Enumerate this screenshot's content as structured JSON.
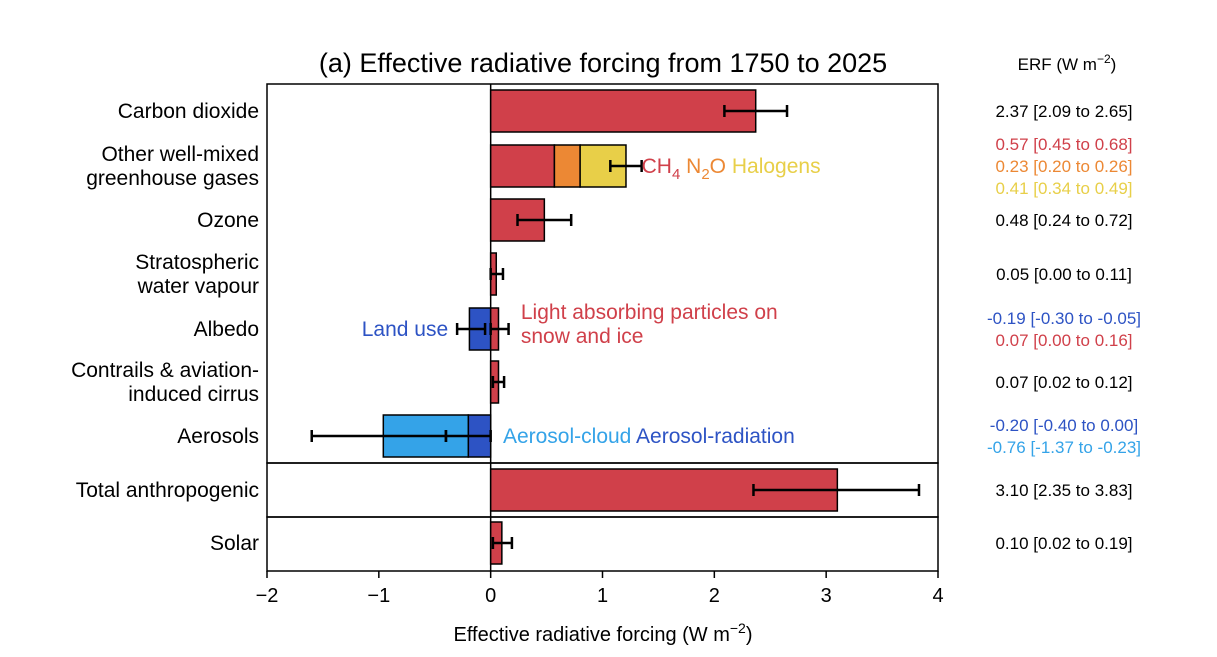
{
  "chart_data": {
    "type": "bar",
    "orientation": "horizontal",
    "title": "(a) Effective radiative forcing from 1750 to 2025",
    "xlabel": "Effective radiative forcing (W m",
    "xlabel_sup": "−2",
    "xlabel_close": ")",
    "xlim": [
      -2,
      4
    ],
    "xticks": [
      -2,
      -1,
      0,
      1,
      2,
      3,
      4
    ],
    "xtick_labels": [
      "−2",
      "−1",
      "0",
      "1",
      "2",
      "3",
      "4"
    ],
    "erf_header": "ERF (W m",
    "erf_header_sup": "−2",
    "erf_header_close": ")",
    "colors": {
      "co2_red": "#d0404a",
      "n2o_orange": "#ec8834",
      "halogens_yellow": "#e8cf48",
      "landuse_blue": "#2d53c4",
      "aerosol_cloud_blue": "#34a3e8",
      "aerosol_radiation_blue": "#2d53c4",
      "text_black": "#000000"
    },
    "categories": [
      {
        "label_lines": [
          "Carbon dioxide"
        ],
        "group": 0,
        "segments": [
          {
            "component": "CO2",
            "start": 0,
            "end": 2.37,
            "color": "#d0404a"
          }
        ],
        "errorbars": [
          {
            "center": 2.37,
            "low": 2.09,
            "high": 2.65
          }
        ],
        "erf_lines": [
          {
            "text": "2.37 [2.09 to 2.65]",
            "color": "#000000"
          }
        ]
      },
      {
        "label_lines": [
          "Other well-mixed",
          "greenhouse gases"
        ],
        "group": 0,
        "segments": [
          {
            "component": "CH4",
            "start": 0,
            "end": 0.57,
            "color": "#d0404a"
          },
          {
            "component": "N2O",
            "start": 0.57,
            "end": 0.8,
            "color": "#ec8834"
          },
          {
            "component": "Halogens",
            "start": 0.8,
            "end": 1.21,
            "color": "#e8cf48"
          }
        ],
        "errorbars": [
          {
            "center": 1.21,
            "low": 1.07,
            "high": 1.35
          }
        ],
        "erf_lines": [
          {
            "text": "0.57 [0.45 to 0.68]",
            "color": "#d0404a"
          },
          {
            "text": "0.23 [0.20 to 0.26]",
            "color": "#ec8834"
          },
          {
            "text": "0.41 [0.34 to 0.49]",
            "color": "#e8cf48"
          }
        ]
      },
      {
        "label_lines": [
          "Ozone"
        ],
        "group": 0,
        "segments": [
          {
            "component": "Ozone",
            "start": 0,
            "end": 0.48,
            "color": "#d0404a"
          }
        ],
        "errorbars": [
          {
            "center": 0.48,
            "low": 0.24,
            "high": 0.72
          }
        ],
        "erf_lines": [
          {
            "text": "0.48 [0.24 to 0.72]",
            "color": "#000000"
          }
        ]
      },
      {
        "label_lines": [
          "Stratospheric",
          "water vapour"
        ],
        "group": 0,
        "segments": [
          {
            "component": "Stratospheric water vapour",
            "start": 0,
            "end": 0.05,
            "color": "#d0404a"
          }
        ],
        "errorbars": [
          {
            "center": 0.05,
            "low": 0.0,
            "high": 0.11
          }
        ],
        "erf_lines": [
          {
            "text": "0.05 [0.00 to 0.11]",
            "color": "#000000"
          }
        ]
      },
      {
        "label_lines": [
          "Albedo"
        ],
        "group": 0,
        "segments": [
          {
            "component": "Land use",
            "start": -0.19,
            "end": 0,
            "color": "#2d53c4"
          },
          {
            "component": "Light absorbing particles on snow and ice",
            "start": 0,
            "end": 0.07,
            "color": "#d0404a"
          }
        ],
        "errorbars": [
          {
            "center": -0.19,
            "low": -0.3,
            "high": -0.05
          },
          {
            "center": 0.07,
            "low": 0.0,
            "high": 0.16
          }
        ],
        "erf_lines": [
          {
            "text": "-0.19 [-0.30 to -0.05]",
            "color": "#2d53c4"
          },
          {
            "text": "0.07 [0.00 to 0.16]",
            "color": "#d0404a"
          }
        ]
      },
      {
        "label_lines": [
          "Contrails & aviation-",
          "induced cirrus"
        ],
        "group": 0,
        "segments": [
          {
            "component": "Contrails",
            "start": 0,
            "end": 0.07,
            "color": "#d0404a"
          }
        ],
        "errorbars": [
          {
            "center": 0.07,
            "low": 0.02,
            "high": 0.12
          }
        ],
        "erf_lines": [
          {
            "text": "0.07 [0.02 to 0.12]",
            "color": "#000000"
          }
        ]
      },
      {
        "label_lines": [
          "Aerosols"
        ],
        "group": 0,
        "segments": [
          {
            "component": "Aerosol-radiation",
            "start": -0.2,
            "end": 0,
            "color": "#2d53c4"
          },
          {
            "component": "Aerosol-cloud",
            "start": -0.96,
            "end": -0.2,
            "color": "#34a3e8"
          }
        ],
        "errorbars": [
          {
            "center": -0.2,
            "low": -0.4,
            "high": 0.0
          },
          {
            "center": -0.96,
            "low": -1.6,
            "high": -0.4
          }
        ],
        "erf_lines": [
          {
            "text": "-0.20 [-0.40 to 0.00]",
            "color": "#2d53c4"
          },
          {
            "text": "-0.76 [-1.37 to -0.23]",
            "color": "#34a3e8"
          }
        ]
      },
      {
        "label_lines": [
          "Total anthropogenic"
        ],
        "group": 1,
        "segments": [
          {
            "component": "Total anthropogenic",
            "start": 0,
            "end": 3.1,
            "color": "#d0404a"
          }
        ],
        "errorbars": [
          {
            "center": 3.1,
            "low": 2.35,
            "high": 3.83
          }
        ],
        "erf_lines": [
          {
            "text": "3.10 [2.35 to 3.83]",
            "color": "#000000"
          }
        ]
      },
      {
        "label_lines": [
          "Solar"
        ],
        "group": 2,
        "segments": [
          {
            "component": "Solar",
            "start": 0,
            "end": 0.1,
            "color": "#d0404a"
          }
        ],
        "errorbars": [
          {
            "center": 0.1,
            "low": 0.02,
            "high": 0.19
          }
        ],
        "erf_lines": [
          {
            "text": "0.10 [0.02 to 0.19]",
            "color": "#000000"
          }
        ]
      }
    ],
    "annotations": [
      {
        "category_index": 1,
        "anchor_x": 1.35,
        "anchor": "start",
        "parts": [
          {
            "text": "CH",
            "color": "#d0404a"
          },
          {
            "text": "4",
            "color": "#d0404a",
            "sub": true
          },
          {
            "text": " N",
            "color": "#ec8834"
          },
          {
            "text": "2",
            "color": "#ec8834",
            "sub": true
          },
          {
            "text": "O",
            "color": "#ec8834"
          },
          {
            "text": " Halogens",
            "color": "#e8cf48"
          }
        ]
      },
      {
        "category_index": 4,
        "anchor_x": -0.38,
        "anchor": "end",
        "parts": [
          {
            "text": "Land use",
            "color": "#2d53c4"
          }
        ]
      },
      {
        "category_index": 4,
        "anchor_x": 0.27,
        "anchor": "start",
        "multiline": true,
        "parts": [
          {
            "text": "Light absorbing particles on",
            "color": "#d0404a"
          },
          {
            "text": "snow and ice",
            "color": "#d0404a"
          }
        ]
      },
      {
        "category_index": 6,
        "anchor_x": 0.11,
        "anchor": "start",
        "parts": [
          {
            "text": "Aerosol-cloud",
            "color": "#34a3e8"
          },
          {
            "text": " Aerosol-radiation",
            "color": "#2d53c4"
          }
        ]
      }
    ]
  }
}
